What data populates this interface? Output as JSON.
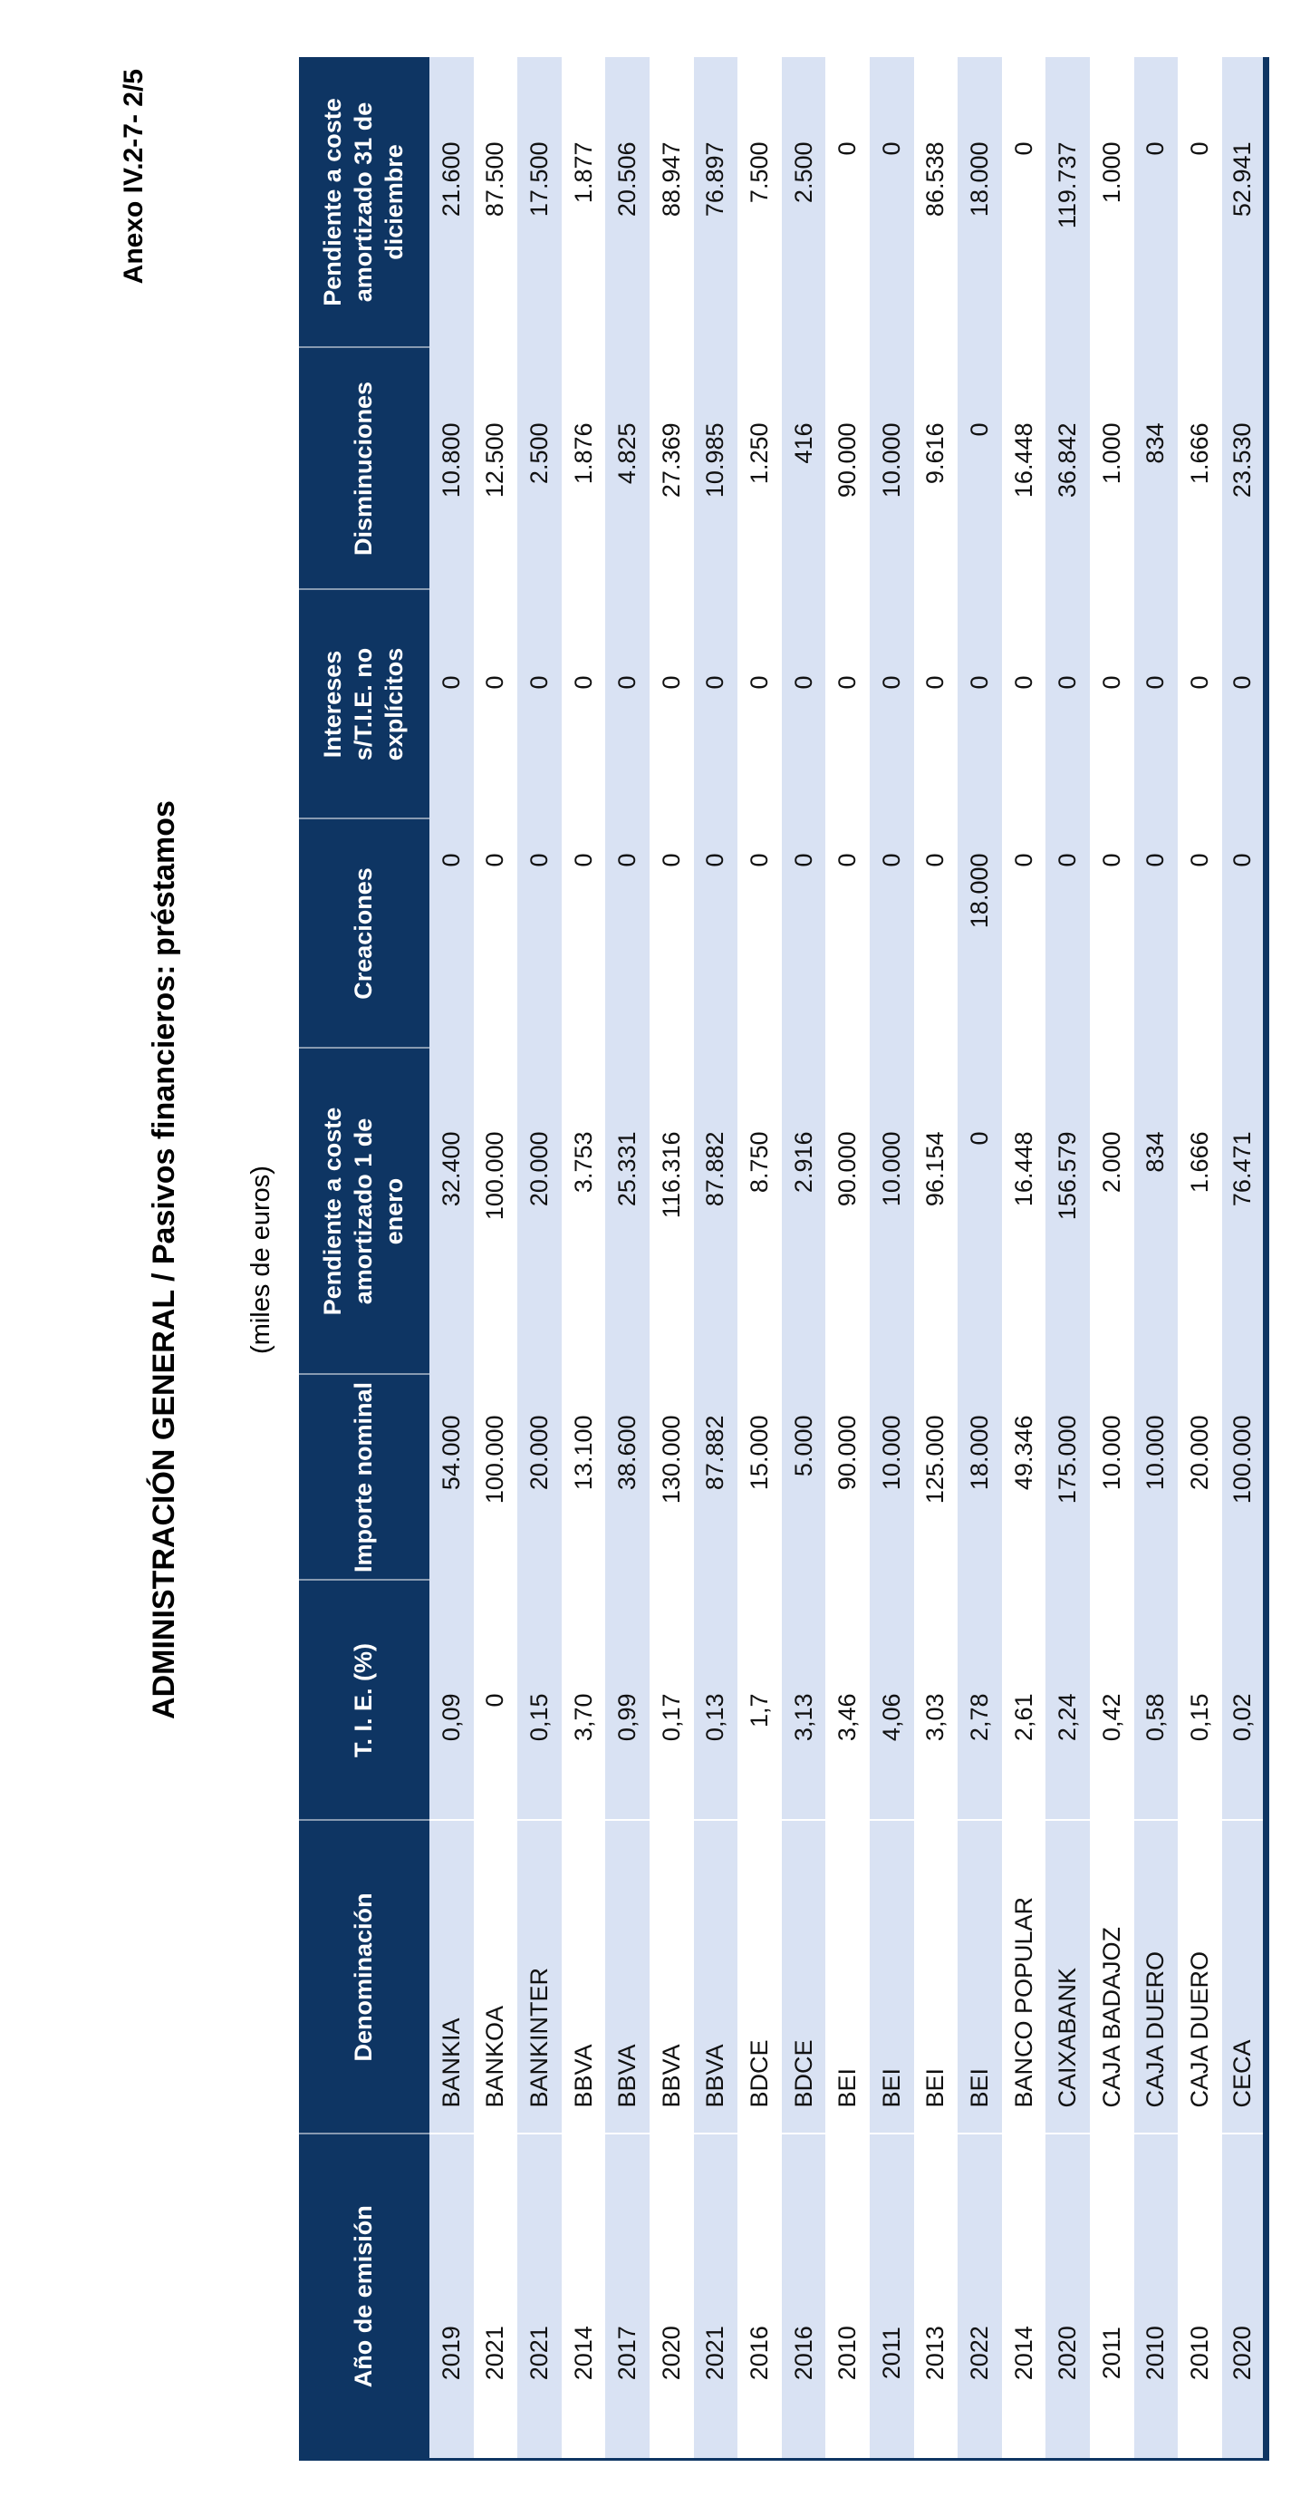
{
  "annex_label": "Anexo IV.2-7- 2/5",
  "title": "ADMINISTRACIÓN GENERAL  /  Pasivos financieros: préstamos",
  "units_note": "(miles de euros)",
  "colors": {
    "header_bg": "#0e3563",
    "header_text": "#ffffff",
    "row_alt": "#d9e2f3",
    "row_plain": "#ffffff"
  },
  "table": {
    "columns": [
      {
        "key": "anio",
        "label": "Año de emisión"
      },
      {
        "key": "denominacion",
        "label": "Denominación"
      },
      {
        "key": "tie",
        "label": "T. I. E. (%)"
      },
      {
        "key": "importe_nominal",
        "label": "Importe nominal"
      },
      {
        "key": "pendiente_enero",
        "label": "Pendiente a coste\namortizado 1 de\nenero"
      },
      {
        "key": "creaciones",
        "label": "Creaciones"
      },
      {
        "key": "intereses",
        "label": "Intereses\ns/T.I.E. no\nexplícitos"
      },
      {
        "key": "disminuciones",
        "label": "Disminuciones"
      },
      {
        "key": "pendiente_diciembre",
        "label": "Pendiente a coste\namortizado 31 de\ndiciembre"
      }
    ],
    "rows": [
      {
        "anio": "2019",
        "denominacion": "BANKIA",
        "tie": "0,09",
        "importe_nominal": "54.000",
        "pendiente_enero": "32.400",
        "creaciones": "0",
        "intereses": "0",
        "disminuciones": "10.800",
        "pendiente_diciembre": "21.600"
      },
      {
        "anio": "2021",
        "denominacion": "BANKOA",
        "tie": "0",
        "importe_nominal": "100.000",
        "pendiente_enero": "100.000",
        "creaciones": "0",
        "intereses": "0",
        "disminuciones": "12.500",
        "pendiente_diciembre": "87.500"
      },
      {
        "anio": "2021",
        "denominacion": "BANKINTER",
        "tie": "0,15",
        "importe_nominal": "20.000",
        "pendiente_enero": "20.000",
        "creaciones": "0",
        "intereses": "0",
        "disminuciones": "2.500",
        "pendiente_diciembre": "17.500"
      },
      {
        "anio": "2014",
        "denominacion": "BBVA",
        "tie": "3,70",
        "importe_nominal": "13.100",
        "pendiente_enero": "3.753",
        "creaciones": "0",
        "intereses": "0",
        "disminuciones": "1.876",
        "pendiente_diciembre": "1.877"
      },
      {
        "anio": "2017",
        "denominacion": "BBVA",
        "tie": "0,99",
        "importe_nominal": "38.600",
        "pendiente_enero": "25.331",
        "creaciones": "0",
        "intereses": "0",
        "disminuciones": "4.825",
        "pendiente_diciembre": "20.506"
      },
      {
        "anio": "2020",
        "denominacion": "BBVA",
        "tie": "0,17",
        "importe_nominal": "130.000",
        "pendiente_enero": "116.316",
        "creaciones": "0",
        "intereses": "0",
        "disminuciones": "27.369",
        "pendiente_diciembre": "88.947"
      },
      {
        "anio": "2021",
        "denominacion": "BBVA",
        "tie": "0,13",
        "importe_nominal": "87.882",
        "pendiente_enero": "87.882",
        "creaciones": "0",
        "intereses": "0",
        "disminuciones": "10.985",
        "pendiente_diciembre": "76.897"
      },
      {
        "anio": "2016",
        "denominacion": "BDCE",
        "tie": "1,7",
        "importe_nominal": "15.000",
        "pendiente_enero": "8.750",
        "creaciones": "0",
        "intereses": "0",
        "disminuciones": "1.250",
        "pendiente_diciembre": "7.500"
      },
      {
        "anio": "2016",
        "denominacion": "BDCE",
        "tie": "3,13",
        "importe_nominal": "5.000",
        "pendiente_enero": "2.916",
        "creaciones": "0",
        "intereses": "0",
        "disminuciones": "416",
        "pendiente_diciembre": "2.500"
      },
      {
        "anio": "2010",
        "denominacion": "BEI",
        "tie": "3,46",
        "importe_nominal": "90.000",
        "pendiente_enero": "90.000",
        "creaciones": "0",
        "intereses": "0",
        "disminuciones": "90.000",
        "pendiente_diciembre": "0"
      },
      {
        "anio": "2011",
        "denominacion": "BEI",
        "tie": "4,06",
        "importe_nominal": "10.000",
        "pendiente_enero": "10.000",
        "creaciones": "0",
        "intereses": "0",
        "disminuciones": "10.000",
        "pendiente_diciembre": "0"
      },
      {
        "anio": "2013",
        "denominacion": "BEI",
        "tie": "3,03",
        "importe_nominal": "125.000",
        "pendiente_enero": "96.154",
        "creaciones": "0",
        "intereses": "0",
        "disminuciones": "9.616",
        "pendiente_diciembre": "86.538"
      },
      {
        "anio": "2022",
        "denominacion": "BEI",
        "tie": "2,78",
        "importe_nominal": "18.000",
        "pendiente_enero": "0",
        "creaciones": "18.000",
        "intereses": "0",
        "disminuciones": "0",
        "pendiente_diciembre": "18.000"
      },
      {
        "anio": "2014",
        "denominacion": "BANCO POPULAR",
        "tie": "2,61",
        "importe_nominal": "49.346",
        "pendiente_enero": "16.448",
        "creaciones": "0",
        "intereses": "0",
        "disminuciones": "16.448",
        "pendiente_diciembre": "0"
      },
      {
        "anio": "2020",
        "denominacion": "CAIXABANK",
        "tie": "2,24",
        "importe_nominal": "175.000",
        "pendiente_enero": "156.579",
        "creaciones": "0",
        "intereses": "0",
        "disminuciones": "36.842",
        "pendiente_diciembre": "119.737"
      },
      {
        "anio": "2011",
        "denominacion": "CAJA BADAJOZ",
        "tie": "0,42",
        "importe_nominal": "10.000",
        "pendiente_enero": "2.000",
        "creaciones": "0",
        "intereses": "0",
        "disminuciones": "1.000",
        "pendiente_diciembre": "1.000"
      },
      {
        "anio": "2010",
        "denominacion": "CAJA DUERO",
        "tie": "0,58",
        "importe_nominal": "10.000",
        "pendiente_enero": "834",
        "creaciones": "0",
        "intereses": "0",
        "disminuciones": "834",
        "pendiente_diciembre": "0"
      },
      {
        "anio": "2010",
        "denominacion": "CAJA DUERO",
        "tie": "0,15",
        "importe_nominal": "20.000",
        "pendiente_enero": "1.666",
        "creaciones": "0",
        "intereses": "0",
        "disminuciones": "1.666",
        "pendiente_diciembre": "0"
      },
      {
        "anio": "2020",
        "denominacion": "CECA",
        "tie": "0,02",
        "importe_nominal": "100.000",
        "pendiente_enero": "76.471",
        "creaciones": "0",
        "intereses": "0",
        "disminuciones": "23.530",
        "pendiente_diciembre": "52.941"
      }
    ]
  }
}
